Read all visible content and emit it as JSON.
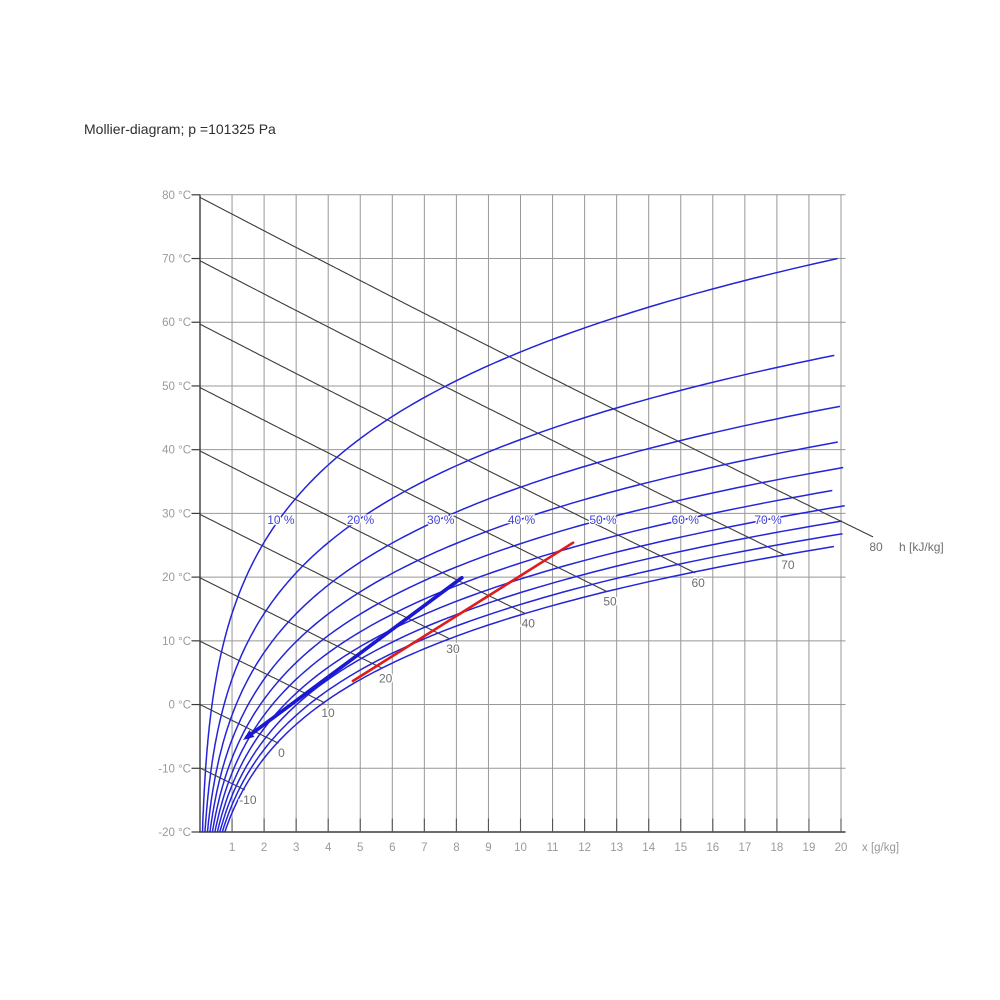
{
  "title": "Mollier-diagram; p =101325 Pa",
  "chart_data": {
    "type": "line",
    "title": "Mollier-diagram; p =101325 Pa",
    "pressure_pa": 101325,
    "x_axis": {
      "label": "x [g/kg]",
      "min": 0,
      "max": 20,
      "tick_values": [
        1,
        2,
        3,
        4,
        5,
        6,
        7,
        8,
        9,
        10,
        11,
        12,
        13,
        14,
        15,
        16,
        17,
        18,
        19,
        20
      ]
    },
    "t_axis": {
      "unit": "°C",
      "min": -20,
      "max": 80,
      "tick_values": [
        80,
        70,
        60,
        50,
        40,
        30,
        20,
        10,
        0,
        -10,
        -20
      ],
      "tick_label_suffix": " °C"
    },
    "relative_humidity_curves": {
      "percent_values": [
        10,
        20,
        30,
        40,
        50,
        60,
        70,
        80,
        90,
        100
      ],
      "labeled_percents": [
        10,
        20,
        30,
        40,
        50,
        60,
        70
      ],
      "label_suffix": " %",
      "label_row_temp_c": 29
    },
    "enthalpy_lines": {
      "values_kj_per_kg": [
        -10,
        0,
        10,
        20,
        30,
        40,
        50,
        60,
        70,
        80
      ],
      "unit_label": "h [kJ/kg]",
      "unit_label_visible": "h [kJ/k"
    },
    "process_lines": [
      {
        "name": "process-line-blue",
        "color": "#1a18d0",
        "width": 3.6,
        "arrow_at_start": true,
        "from": {
          "x_g_kg": 1.47,
          "t_c": -5.1
        },
        "to": {
          "x_g_kg": 8.17,
          "t_c": 19.9
        }
      },
      {
        "name": "process-line-red",
        "color": "#e01b1b",
        "width": 2.6,
        "arrow_at_start": false,
        "from": {
          "x_g_kg": 4.77,
          "t_c": 3.7
        },
        "to": {
          "x_g_kg": 11.64,
          "t_c": 25.4
        }
      }
    ],
    "colors": {
      "grid": "#989898",
      "axis": "#3c3c3c",
      "isoline": "#3c3c3c",
      "curve_blue": "#2424d8",
      "rh_label_blue": "#4343d6",
      "tick_label_gray": "#9a9a9a",
      "enthalpy_label_gray": "#6e6e6e",
      "title_color": "#2e2e2e"
    }
  }
}
